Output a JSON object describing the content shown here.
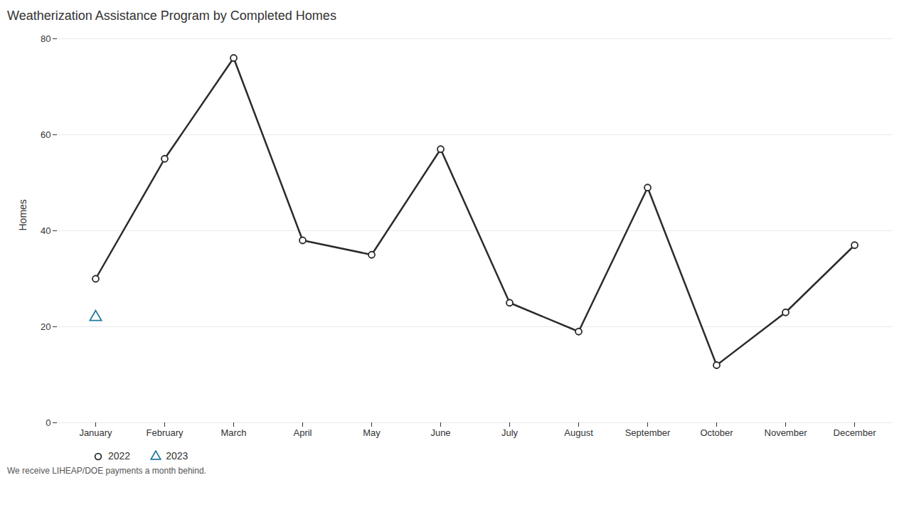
{
  "chart_data": {
    "type": "line",
    "title": "Weatherization Assistance Program by Completed Homes",
    "ylabel": "Homes",
    "annotations": [
      "We receive LIHEAP/DOE payments a month behind."
    ],
    "categories": [
      "January",
      "February",
      "March",
      "April",
      "May",
      "June",
      "July",
      "August",
      "September",
      "October",
      "November",
      "December"
    ],
    "series": [
      {
        "name": "2022",
        "color": "#2b2b2b",
        "marker": "circle",
        "line_style": "solid",
        "values": [
          30,
          55,
          76,
          38,
          35,
          57,
          25,
          19,
          49,
          12,
          23,
          37
        ]
      },
      {
        "name": "2023",
        "color": "#1f7a9e",
        "marker": "triangle",
        "line_style": "none",
        "values": [
          22,
          null,
          null,
          null,
          null,
          null,
          null,
          null,
          null,
          null,
          null,
          null
        ]
      }
    ],
    "ylim": [
      0,
      80
    ],
    "yticks": [
      0,
      20,
      40,
      60,
      80
    ],
    "grid": true,
    "legend": "bottom"
  }
}
